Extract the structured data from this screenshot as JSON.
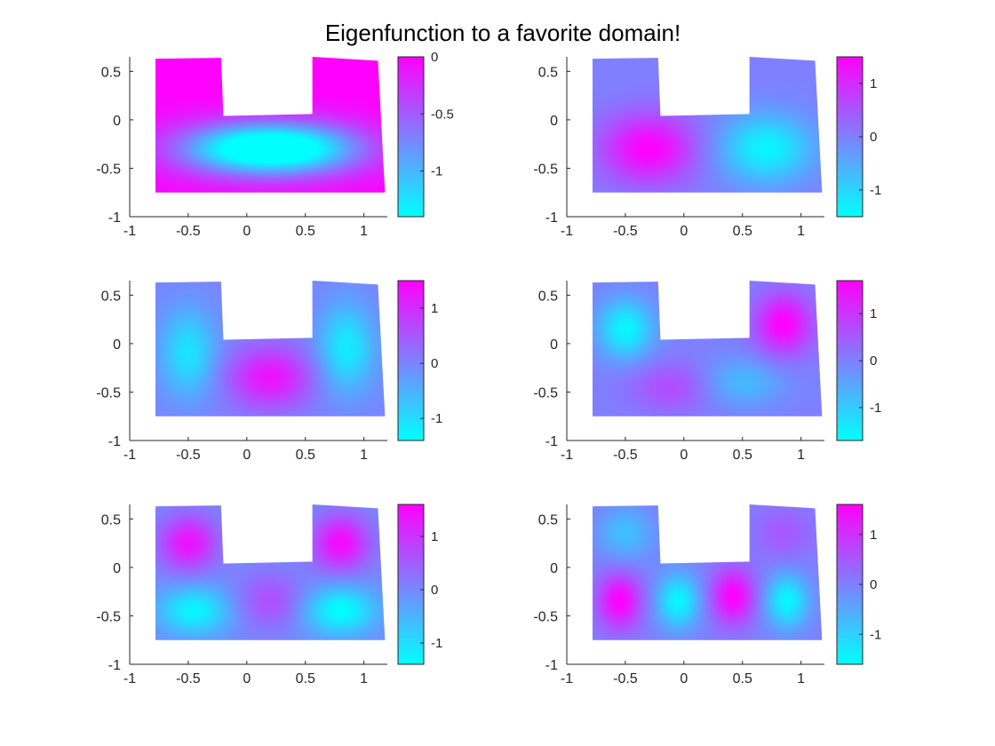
{
  "figure": {
    "title": "Eigenfunction to a favorite domain!"
  },
  "colormap": {
    "low": "#00ffff",
    "high": "#ff00ff"
  },
  "chart_data": [
    {
      "type": "heatmap",
      "title": "",
      "xlabel": "",
      "ylabel": "",
      "xlim": [
        -1,
        1.2
      ],
      "ylim": [
        -1,
        0.65
      ],
      "xticks": [
        "-1",
        "-0.5",
        "0",
        "0.5",
        "1"
      ],
      "yticks": [
        "0.5",
        "0",
        "-0.5",
        "-1"
      ],
      "domain_polygon": [
        [
          -0.78,
          0.63
        ],
        [
          -0.22,
          0.64
        ],
        [
          -0.2,
          0.04
        ],
        [
          0.56,
          0.06
        ],
        [
          0.56,
          0.65
        ],
        [
          1.12,
          0.61
        ],
        [
          1.18,
          -0.75
        ],
        [
          -0.78,
          -0.75
        ]
      ],
      "colorbar": {
        "range": [
          -1.4,
          0
        ],
        "ticks": [
          "0",
          "-0.5",
          "-1"
        ]
      },
      "color_range": [
        -1.4,
        0
      ],
      "field": {
        "base": 0,
        "blobs": [
          {
            "x": 0.2,
            "y": -0.3,
            "a": -1.4,
            "sx": 0.55,
            "sy": 0.2
          },
          {
            "x": -0.1,
            "y": -0.3,
            "a": -0.3,
            "sx": 0.35,
            "sy": 0.18
          },
          {
            "x": 0.5,
            "y": -0.3,
            "a": -0.3,
            "sx": 0.35,
            "sy": 0.18
          }
        ]
      }
    },
    {
      "type": "heatmap",
      "title": "",
      "xlabel": "",
      "ylabel": "",
      "xlim": [
        -1,
        1.2
      ],
      "ylim": [
        -1,
        0.65
      ],
      "xticks": [
        "-1",
        "-0.5",
        "0",
        "0.5",
        "1"
      ],
      "yticks": [
        "0.5",
        "0",
        "-0.5",
        "-1"
      ],
      "domain_polygon": [
        [
          -0.78,
          0.63
        ],
        [
          -0.22,
          0.64
        ],
        [
          -0.2,
          0.04
        ],
        [
          0.56,
          0.06
        ],
        [
          0.56,
          0.65
        ],
        [
          1.12,
          0.61
        ],
        [
          1.18,
          -0.75
        ],
        [
          -0.78,
          -0.75
        ]
      ],
      "colorbar": {
        "range": [
          -1.5,
          1.5
        ],
        "ticks": [
          "1",
          "0",
          "-1"
        ]
      },
      "color_range": [
        -1.5,
        1.5
      ],
      "field": {
        "base": 0,
        "blobs": [
          {
            "x": -0.3,
            "y": -0.3,
            "a": 1.5,
            "sx": 0.28,
            "sy": 0.25
          },
          {
            "x": 0.7,
            "y": -0.3,
            "a": -1.4,
            "sx": 0.28,
            "sy": 0.25
          }
        ]
      }
    },
    {
      "type": "heatmap",
      "title": "",
      "xlabel": "",
      "ylabel": "",
      "xlim": [
        -1,
        1.2
      ],
      "ylim": [
        -1,
        0.65
      ],
      "xticks": [
        "-1",
        "-0.5",
        "0",
        "0.5",
        "1"
      ],
      "yticks": [
        "0.5",
        "0",
        "-0.5",
        "-1"
      ],
      "domain_polygon": [
        [
          -0.78,
          0.63
        ],
        [
          -0.22,
          0.64
        ],
        [
          -0.2,
          0.04
        ],
        [
          0.56,
          0.06
        ],
        [
          0.56,
          0.65
        ],
        [
          1.12,
          0.61
        ],
        [
          1.18,
          -0.75
        ],
        [
          -0.78,
          -0.75
        ]
      ],
      "colorbar": {
        "range": [
          -1.4,
          1.5
        ],
        "ticks": [
          "1",
          "0",
          "-1"
        ]
      },
      "color_range": [
        -1.4,
        1.5
      ],
      "field": {
        "base": 0,
        "blobs": [
          {
            "x": -0.5,
            "y": -0.1,
            "a": -1.1,
            "sx": 0.17,
            "sy": 0.32
          },
          {
            "x": 0.85,
            "y": -0.05,
            "a": -1.2,
            "sx": 0.17,
            "sy": 0.32
          },
          {
            "x": 0.2,
            "y": -0.35,
            "a": 1.3,
            "sx": 0.25,
            "sy": 0.22
          }
        ]
      }
    },
    {
      "type": "heatmap",
      "title": "",
      "xlabel": "",
      "ylabel": "",
      "xlim": [
        -1,
        1.2
      ],
      "ylim": [
        -1,
        0.65
      ],
      "xticks": [
        "-1",
        "-0.5",
        "0",
        "0.5",
        "1"
      ],
      "yticks": [
        "0.5",
        "0",
        "-0.5",
        "-1"
      ],
      "domain_polygon": [
        [
          -0.78,
          0.63
        ],
        [
          -0.22,
          0.64
        ],
        [
          -0.2,
          0.04
        ],
        [
          0.56,
          0.06
        ],
        [
          0.56,
          0.65
        ],
        [
          1.12,
          0.61
        ],
        [
          1.18,
          -0.75
        ],
        [
          -0.78,
          -0.75
        ]
      ],
      "colorbar": {
        "range": [
          -1.7,
          1.7
        ],
        "ticks": [
          "1",
          "0",
          "-1"
        ]
      },
      "color_range": [
        -1.7,
        1.7
      ],
      "field": {
        "base": 0,
        "blobs": [
          {
            "x": -0.5,
            "y": 0.15,
            "a": -1.6,
            "sx": 0.17,
            "sy": 0.22
          },
          {
            "x": 0.85,
            "y": 0.2,
            "a": 1.7,
            "sx": 0.17,
            "sy": 0.22
          },
          {
            "x": -0.1,
            "y": -0.45,
            "a": 0.7,
            "sx": 0.25,
            "sy": 0.18
          },
          {
            "x": 0.5,
            "y": -0.4,
            "a": -0.8,
            "sx": 0.25,
            "sy": 0.18
          }
        ]
      }
    },
    {
      "type": "heatmap",
      "title": "",
      "xlabel": "",
      "ylabel": "",
      "xlim": [
        -1,
        1.2
      ],
      "ylim": [
        -1,
        0.65
      ],
      "xticks": [
        "-1",
        "-0.5",
        "0",
        "0.5",
        "1"
      ],
      "yticks": [
        "0.5",
        "0",
        "-0.5",
        "-1"
      ],
      "domain_polygon": [
        [
          -0.78,
          0.63
        ],
        [
          -0.22,
          0.64
        ],
        [
          -0.2,
          0.04
        ],
        [
          0.56,
          0.06
        ],
        [
          0.56,
          0.65
        ],
        [
          1.12,
          0.61
        ],
        [
          1.18,
          -0.75
        ],
        [
          -0.78,
          -0.75
        ]
      ],
      "colorbar": {
        "range": [
          -1.4,
          1.6
        ],
        "ticks": [
          "1",
          "0",
          "-1"
        ]
      },
      "color_range": [
        -1.4,
        1.6
      ],
      "field": {
        "base": 0,
        "blobs": [
          {
            "x": -0.5,
            "y": 0.25,
            "a": 1.4,
            "sx": 0.17,
            "sy": 0.2
          },
          {
            "x": 0.8,
            "y": 0.25,
            "a": 1.5,
            "sx": 0.17,
            "sy": 0.2
          },
          {
            "x": -0.45,
            "y": -0.45,
            "a": -1.3,
            "sx": 0.22,
            "sy": 0.18
          },
          {
            "x": 0.8,
            "y": -0.45,
            "a": -1.4,
            "sx": 0.22,
            "sy": 0.18
          },
          {
            "x": 0.2,
            "y": -0.35,
            "a": 0.7,
            "sx": 0.2,
            "sy": 0.2
          }
        ]
      }
    },
    {
      "type": "heatmap",
      "title": "",
      "xlabel": "",
      "ylabel": "",
      "xlim": [
        -1,
        1.2
      ],
      "ylim": [
        -1,
        0.65
      ],
      "xticks": [
        "-1",
        "-0.5",
        "0",
        "0.5",
        "1"
      ],
      "yticks": [
        "0.5",
        "0",
        "-0.5",
        "-1"
      ],
      "domain_polygon": [
        [
          -0.78,
          0.63
        ],
        [
          -0.22,
          0.64
        ],
        [
          -0.2,
          0.04
        ],
        [
          0.56,
          0.06
        ],
        [
          0.56,
          0.65
        ],
        [
          1.12,
          0.61
        ],
        [
          1.18,
          -0.75
        ],
        [
          -0.78,
          -0.75
        ]
      ],
      "colorbar": {
        "range": [
          -1.6,
          1.6
        ],
        "ticks": [
          "1",
          "0",
          "-1"
        ]
      },
      "color_range": [
        -1.6,
        1.6
      ],
      "field": {
        "base": 0,
        "blobs": [
          {
            "x": -0.55,
            "y": -0.35,
            "a": 1.6,
            "sx": 0.13,
            "sy": 0.2
          },
          {
            "x": -0.05,
            "y": -0.35,
            "a": -1.5,
            "sx": 0.13,
            "sy": 0.2
          },
          {
            "x": 0.42,
            "y": -0.3,
            "a": 1.6,
            "sx": 0.13,
            "sy": 0.2
          },
          {
            "x": 0.88,
            "y": -0.35,
            "a": -1.5,
            "sx": 0.13,
            "sy": 0.2
          },
          {
            "x": -0.5,
            "y": 0.35,
            "a": -0.8,
            "sx": 0.17,
            "sy": 0.2
          },
          {
            "x": 0.85,
            "y": 0.35,
            "a": 0.5,
            "sx": 0.17,
            "sy": 0.2
          }
        ]
      }
    }
  ]
}
